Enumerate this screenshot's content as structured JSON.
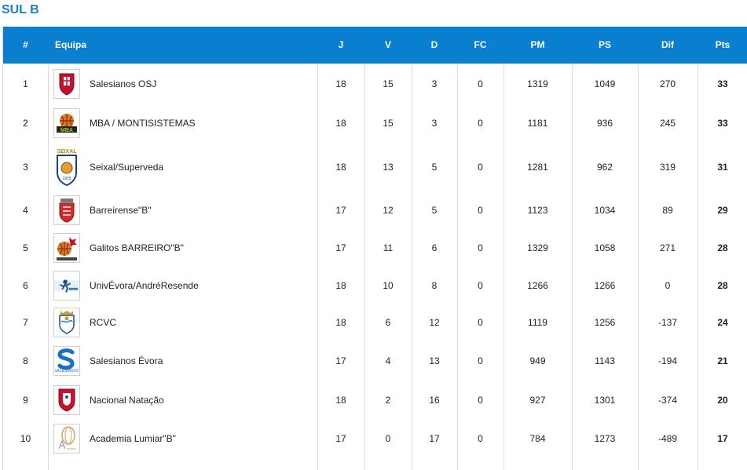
{
  "section": {
    "title": "SUL B"
  },
  "table": {
    "headers": {
      "pos": "#",
      "team": "Equipa",
      "j": "J",
      "v": "V",
      "d": "D",
      "fc": "FC",
      "pm": "PM",
      "ps": "PS",
      "dif": "Dif",
      "pts": "Pts"
    },
    "rows": [
      {
        "pos": "1",
        "team": "Salesianos OSJ",
        "logo": "shield-crest-icon",
        "j": "18",
        "v": "15",
        "d": "3",
        "fc": "0",
        "pm": "1319",
        "ps": "1049",
        "dif": "270",
        "pts": "33"
      },
      {
        "pos": "2",
        "team": "MBA / MONTISISTEMAS",
        "logo": "basketball-mba-icon",
        "j": "18",
        "v": "15",
        "d": "3",
        "fc": "0",
        "pm": "1181",
        "ps": "936",
        "dif": "245",
        "pts": "33"
      },
      {
        "pos": "3",
        "team": "Seixal/Superveda",
        "logo": "seixal-crest-icon",
        "j": "18",
        "v": "13",
        "d": "5",
        "fc": "0",
        "pm": "1281",
        "ps": "962",
        "dif": "319",
        "pts": "31"
      },
      {
        "pos": "4",
        "team": "Barreirense\"B\"",
        "logo": "barreirense-crest-icon",
        "j": "17",
        "v": "12",
        "d": "5",
        "fc": "0",
        "pm": "1123",
        "ps": "1034",
        "dif": "89",
        "pts": "29"
      },
      {
        "pos": "5",
        "team": "Galitos BARREIRO\"B\"",
        "logo": "galitos-ball-icon",
        "j": "17",
        "v": "11",
        "d": "6",
        "fc": "0",
        "pm": "1329",
        "ps": "1058",
        "dif": "271",
        "pts": "28"
      },
      {
        "pos": "6",
        "team": "UnivÉvora/AndréResende",
        "logo": "player-silhouette-icon",
        "j": "18",
        "v": "10",
        "d": "8",
        "fc": "0",
        "pm": "1266",
        "ps": "1266",
        "dif": "0",
        "pts": "28"
      },
      {
        "pos": "7",
        "team": "RCVC",
        "logo": "rcvc-crest-icon",
        "j": "18",
        "v": "6",
        "d": "12",
        "fc": "0",
        "pm": "1119",
        "ps": "1256",
        "dif": "-137",
        "pts": "24"
      },
      {
        "pos": "8",
        "team": "Salesianos Évora",
        "logo": "salesianos-s-icon",
        "j": "17",
        "v": "4",
        "d": "13",
        "fc": "0",
        "pm": "949",
        "ps": "1143",
        "dif": "-194",
        "pts": "21"
      },
      {
        "pos": "9",
        "team": "Nacional Natação",
        "logo": "nacional-shield-icon",
        "j": "18",
        "v": "2",
        "d": "16",
        "fc": "0",
        "pm": "927",
        "ps": "1301",
        "dif": "-374",
        "pts": "20"
      },
      {
        "pos": "10",
        "team": "Academia Lumiar\"B\"",
        "logo": "lumiar-swirl-icon",
        "j": "17",
        "v": "0",
        "d": "17",
        "fc": "0",
        "pm": "784",
        "ps": "1273",
        "dif": "-489",
        "pts": "17"
      }
    ]
  },
  "colors": {
    "accent": "#0a7fd0",
    "title": "#1682c6"
  }
}
